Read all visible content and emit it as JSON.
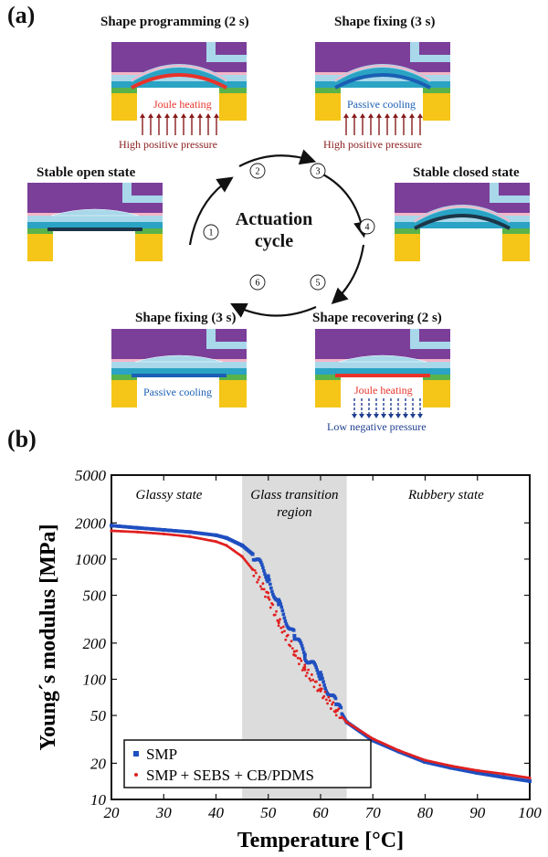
{
  "panel_a": {
    "label": "(a)",
    "center": {
      "line1": "Actuation",
      "line2": "cycle"
    },
    "states": [
      {
        "id": "programming",
        "title": "Shape programming (2 s)",
        "caption": "Joule heating",
        "pressure": "High positive pressure"
      },
      {
        "id": "fixing_top",
        "title": "Shape fixing (3 s)",
        "caption": "Passive cooling",
        "pressure": "High positive pressure"
      },
      {
        "id": "open",
        "title": "Stable open state"
      },
      {
        "id": "closed",
        "title": "Stable closed state"
      },
      {
        "id": "fixing_bottom",
        "title": "Shape fixing (3 s)",
        "caption": "Passive cooling"
      },
      {
        "id": "recovering",
        "title": "Shape recovering (2 s)",
        "caption": "Joule heating",
        "pressure": "Low negative pressure"
      }
    ],
    "steps": [
      "1",
      "2",
      "3",
      "4",
      "5",
      "6"
    ],
    "colors": {
      "purple": "#7b3f9a",
      "light_blue": "#a8d8ea",
      "pink": "#f3b6c8",
      "teal": "#2aa3c4",
      "green": "#59b34a",
      "yellow": "#f5c518",
      "red": "#e8332a",
      "blue": "#1a5fb4",
      "dark": "#1d3548",
      "arrow_red": "#8a1c1c",
      "arrow_blue": "#1e3f8f"
    }
  },
  "panel_b": {
    "label": "(b)",
    "chart_data": {
      "type": "scatter",
      "xlabel": "Temperature [°C]",
      "ylabel": "Young´s modulus [MPa]",
      "xlim": [
        20,
        100
      ],
      "ylim": [
        10,
        5000
      ],
      "yscale": "log",
      "xticks": [
        "20",
        "30",
        "40",
        "50",
        "60",
        "70",
        "80",
        "90",
        "100"
      ],
      "yticks": [
        "10",
        "20",
        "50",
        "100",
        "200",
        "500",
        "1000",
        "2000",
        "5000"
      ],
      "shaded_region": {
        "x": [
          45,
          65
        ],
        "label_line1": "Glass transition",
        "label_line2": "region"
      },
      "region_labels": {
        "glassy": "Glassy state",
        "rubbery": "Rubbery state"
      },
      "legend_position": "bottom-left",
      "series": [
        {
          "name": "SMP",
          "color": "#1f4fc0",
          "x": [
            20,
            25,
            30,
            35,
            40,
            42,
            45,
            47,
            50,
            52,
            55,
            57,
            60,
            63,
            65,
            70,
            75,
            80,
            85,
            90,
            95,
            100
          ],
          "y": [
            1900,
            1820,
            1750,
            1680,
            1580,
            1500,
            1300,
            1100,
            700,
            420,
            230,
            160,
            105,
            62,
            44,
            31,
            25,
            20.5,
            18.3,
            16.6,
            15.3,
            14.2
          ]
        },
        {
          "name": "SMP + SEBS + CB/PDMS",
          "color": "#e02020",
          "x": [
            20,
            25,
            30,
            35,
            40,
            42,
            45,
            47,
            50,
            52,
            55,
            57,
            60,
            63,
            65,
            70,
            75,
            80,
            85,
            90,
            95,
            100
          ],
          "y": [
            1720,
            1680,
            1620,
            1540,
            1400,
            1300,
            1050,
            820,
            480,
            300,
            170,
            120,
            80,
            55,
            44,
            32,
            25.5,
            21.2,
            19,
            17.4,
            16.3,
            15.1
          ]
        }
      ]
    }
  }
}
